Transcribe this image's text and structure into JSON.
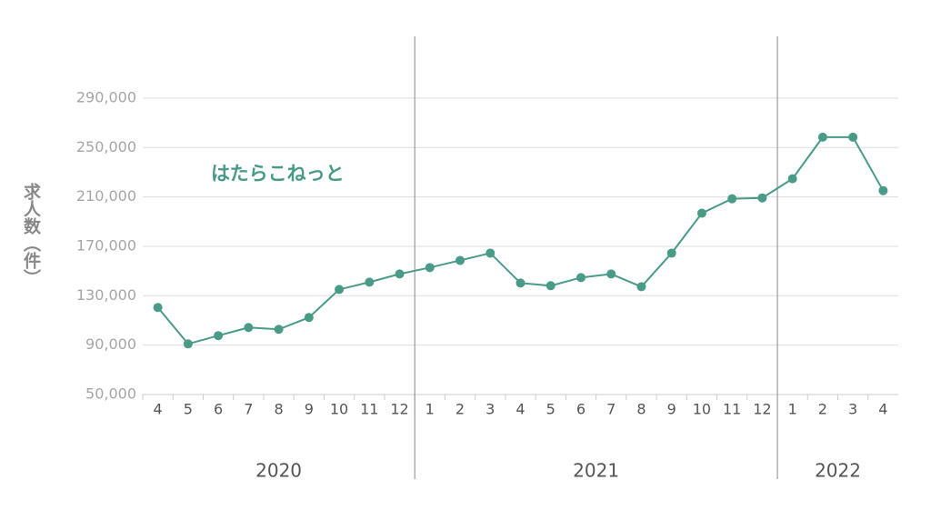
{
  "chart_data": {
    "type": "line",
    "y_label": "求人数（件）",
    "groups": [
      {
        "name": "2020",
        "categories": [
          "4",
          "5",
          "6",
          "7",
          "8",
          "9",
          "10",
          "11",
          "12"
        ]
      },
      {
        "name": "2021",
        "categories": [
          "1",
          "2",
          "3",
          "4",
          "5",
          "6",
          "7",
          "8",
          "9",
          "10",
          "11",
          "12"
        ]
      },
      {
        "name": "2022",
        "categories": [
          "1",
          "2",
          "3",
          "4"
        ]
      }
    ],
    "series": [
      {
        "name": "はたらこねっと",
        "color": "#4a9a88",
        "values": [
          120500,
          91000,
          97700,
          104300,
          102800,
          112400,
          135100,
          141000,
          147600,
          152800,
          158600,
          164500,
          140300,
          138100,
          144700,
          147600,
          137300,
          164500,
          196800,
          208500,
          209200,
          224700,
          258400,
          258400,
          215100
        ]
      }
    ],
    "ylim": [
      50000,
      340000
    ],
    "yticks": [
      {
        "value": 50000,
        "label": "50,000"
      },
      {
        "value": 90000,
        "label": "90,000"
      },
      {
        "value": 130000,
        "label": "130,000"
      },
      {
        "value": 170000,
        "label": "170,000"
      },
      {
        "value": 210000,
        "label": "210,000"
      },
      {
        "value": 250000,
        "label": "250,000"
      },
      {
        "value": 290000,
        "label": "290,000"
      }
    ],
    "grid": true
  }
}
